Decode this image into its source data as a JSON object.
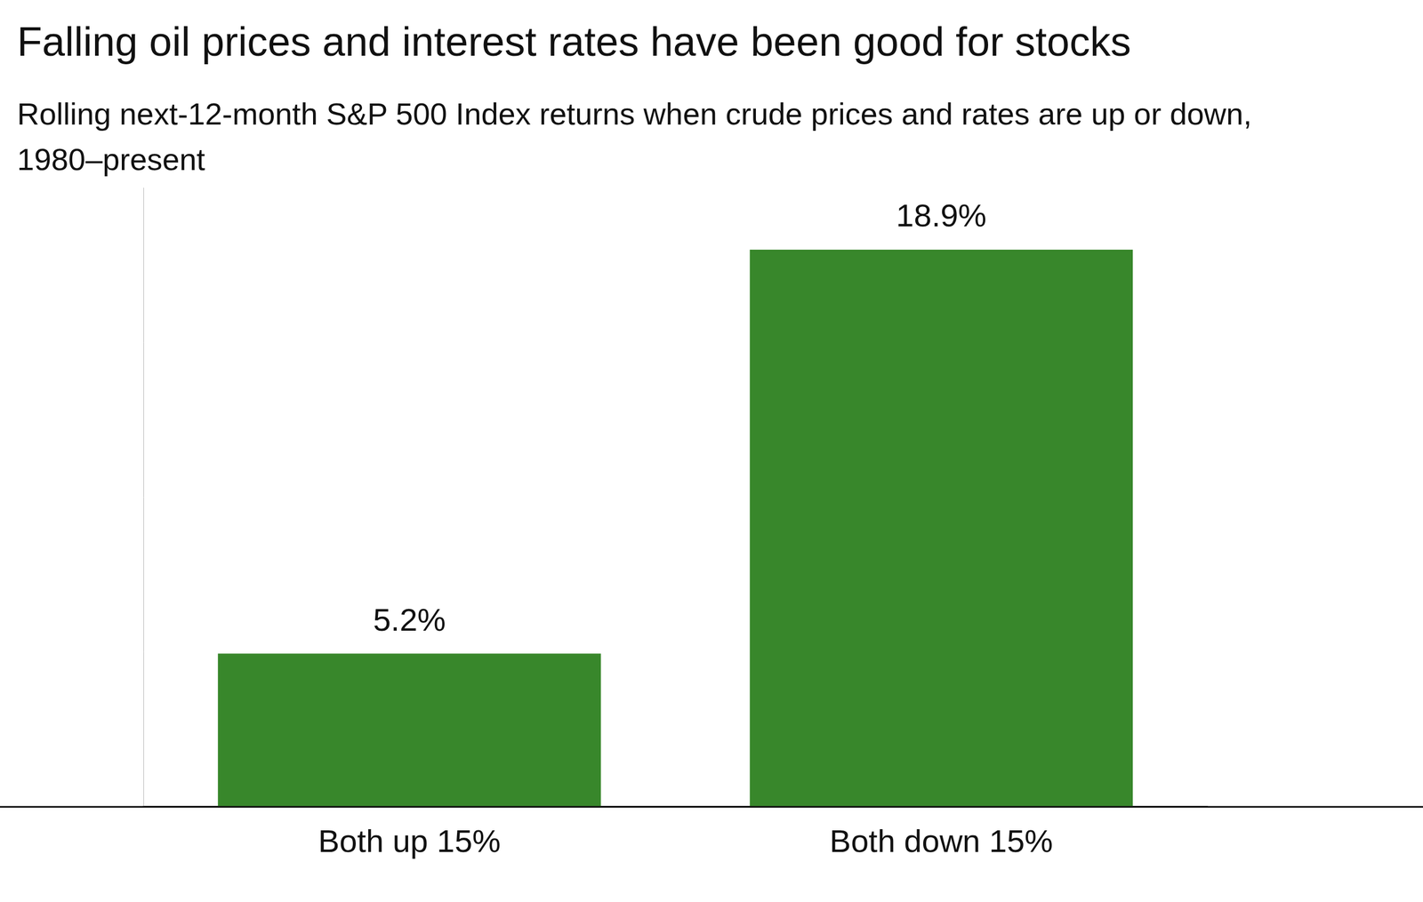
{
  "chart_data": {
    "type": "bar",
    "title": "Falling oil prices and interest rates have been good for stocks",
    "subtitle": "Rolling next-12-month S&P 500 Index returns when crude prices and rates are up or down, 1980–present",
    "categories": [
      "Both up 15%",
      "Both down 15%"
    ],
    "values": [
      5.2,
      18.9
    ],
    "value_labels": [
      "5.2%",
      "18.9%"
    ],
    "color": "#38872b",
    "ylim": [
      0,
      21
    ],
    "grid": false,
    "data_labels": true,
    "tick_labels": "x"
  }
}
